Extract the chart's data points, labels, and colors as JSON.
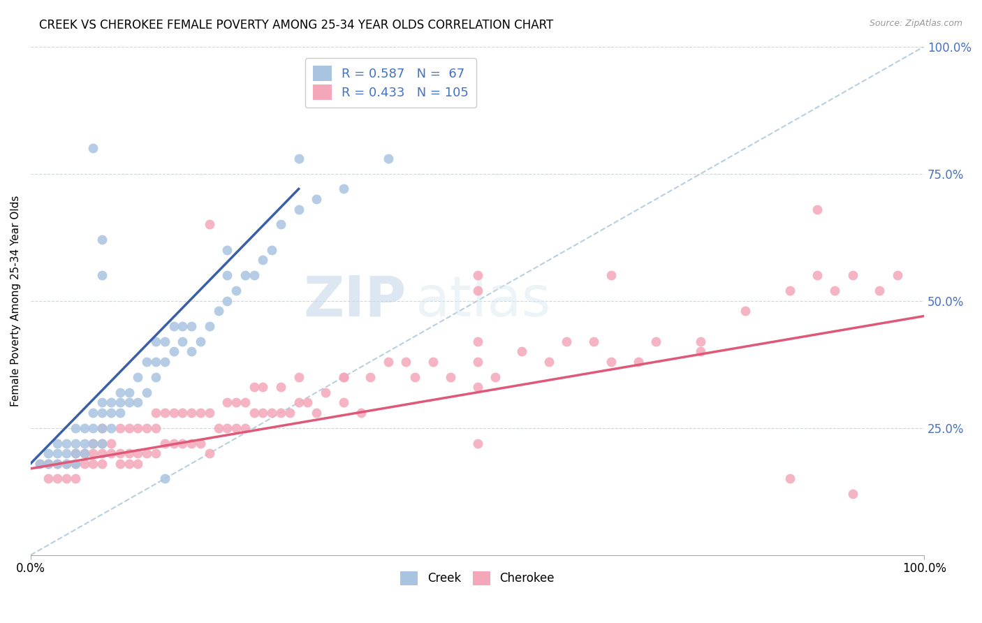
{
  "title": "CREEK VS CHEROKEE FEMALE POVERTY AMONG 25-34 YEAR OLDS CORRELATION CHART",
  "source": "Source: ZipAtlas.com",
  "ylabel": "Female Poverty Among 25-34 Year Olds",
  "creek_R": 0.587,
  "creek_N": 67,
  "cherokee_R": 0.433,
  "cherokee_N": 105,
  "creek_color": "#a8c4e0",
  "cherokee_color": "#f4a7b9",
  "creek_line_color": "#3a5fa8",
  "cherokee_line_color": "#e05878",
  "diagonal_color": "#b8cfe0",
  "watermark_zip": "ZIP",
  "watermark_atlas": "atlas",
  "background_color": "#ffffff",
  "grid_color": "#c8d8e8",
  "right_axis_color": "#4472c4",
  "creek_line": {
    "x0": 0.0,
    "y0": 0.18,
    "x1": 0.3,
    "y1": 0.72
  },
  "cherokee_line": {
    "x0": 0.0,
    "y0": 0.17,
    "x1": 1.0,
    "y1": 0.47
  },
  "creek_x": [
    0.01,
    0.02,
    0.02,
    0.03,
    0.03,
    0.03,
    0.04,
    0.04,
    0.04,
    0.05,
    0.05,
    0.05,
    0.05,
    0.06,
    0.06,
    0.06,
    0.07,
    0.07,
    0.07,
    0.08,
    0.08,
    0.08,
    0.08,
    0.09,
    0.09,
    0.09,
    0.1,
    0.1,
    0.1,
    0.11,
    0.11,
    0.12,
    0.12,
    0.13,
    0.13,
    0.14,
    0.14,
    0.14,
    0.15,
    0.15,
    0.16,
    0.16,
    0.17,
    0.17,
    0.18,
    0.18,
    0.19,
    0.2,
    0.21,
    0.22,
    0.22,
    0.23,
    0.24,
    0.25,
    0.26,
    0.27,
    0.28,
    0.3,
    0.32,
    0.35,
    0.4,
    0.07,
    0.3,
    0.22,
    0.08,
    0.08,
    0.15
  ],
  "creek_y": [
    0.18,
    0.18,
    0.2,
    0.18,
    0.2,
    0.22,
    0.18,
    0.2,
    0.22,
    0.18,
    0.2,
    0.22,
    0.25,
    0.2,
    0.22,
    0.25,
    0.22,
    0.25,
    0.28,
    0.22,
    0.25,
    0.28,
    0.3,
    0.25,
    0.28,
    0.3,
    0.28,
    0.3,
    0.32,
    0.3,
    0.32,
    0.3,
    0.35,
    0.32,
    0.38,
    0.35,
    0.38,
    0.42,
    0.38,
    0.42,
    0.4,
    0.45,
    0.42,
    0.45,
    0.4,
    0.45,
    0.42,
    0.45,
    0.48,
    0.5,
    0.55,
    0.52,
    0.55,
    0.55,
    0.58,
    0.6,
    0.65,
    0.68,
    0.7,
    0.72,
    0.78,
    0.8,
    0.78,
    0.6,
    0.55,
    0.62,
    0.15
  ],
  "cherokee_x": [
    0.01,
    0.02,
    0.02,
    0.03,
    0.03,
    0.04,
    0.04,
    0.05,
    0.05,
    0.05,
    0.06,
    0.06,
    0.07,
    0.07,
    0.07,
    0.08,
    0.08,
    0.08,
    0.08,
    0.09,
    0.09,
    0.1,
    0.1,
    0.1,
    0.11,
    0.11,
    0.11,
    0.12,
    0.12,
    0.12,
    0.13,
    0.13,
    0.14,
    0.14,
    0.14,
    0.15,
    0.15,
    0.16,
    0.16,
    0.17,
    0.17,
    0.18,
    0.18,
    0.19,
    0.19,
    0.2,
    0.2,
    0.21,
    0.22,
    0.22,
    0.23,
    0.23,
    0.24,
    0.24,
    0.25,
    0.25,
    0.26,
    0.26,
    0.27,
    0.28,
    0.28,
    0.29,
    0.3,
    0.3,
    0.31,
    0.32,
    0.33,
    0.35,
    0.35,
    0.37,
    0.38,
    0.4,
    0.42,
    0.43,
    0.45,
    0.47,
    0.5,
    0.5,
    0.52,
    0.55,
    0.58,
    0.6,
    0.63,
    0.65,
    0.68,
    0.7,
    0.75,
    0.8,
    0.85,
    0.88,
    0.9,
    0.92,
    0.95,
    0.97,
    0.5,
    0.35,
    0.2,
    0.88,
    0.5,
    0.65,
    0.75,
    0.5,
    0.92,
    0.5,
    0.85
  ],
  "cherokee_y": [
    0.18,
    0.15,
    0.18,
    0.15,
    0.18,
    0.15,
    0.18,
    0.15,
    0.18,
    0.2,
    0.18,
    0.2,
    0.18,
    0.2,
    0.22,
    0.18,
    0.2,
    0.22,
    0.25,
    0.2,
    0.22,
    0.18,
    0.2,
    0.25,
    0.18,
    0.2,
    0.25,
    0.18,
    0.2,
    0.25,
    0.2,
    0.25,
    0.2,
    0.25,
    0.28,
    0.22,
    0.28,
    0.22,
    0.28,
    0.22,
    0.28,
    0.22,
    0.28,
    0.22,
    0.28,
    0.2,
    0.28,
    0.25,
    0.25,
    0.3,
    0.25,
    0.3,
    0.25,
    0.3,
    0.28,
    0.33,
    0.28,
    0.33,
    0.28,
    0.28,
    0.33,
    0.28,
    0.3,
    0.35,
    0.3,
    0.28,
    0.32,
    0.3,
    0.35,
    0.28,
    0.35,
    0.38,
    0.38,
    0.35,
    0.38,
    0.35,
    0.33,
    0.38,
    0.35,
    0.4,
    0.38,
    0.42,
    0.42,
    0.38,
    0.38,
    0.42,
    0.42,
    0.48,
    0.52,
    0.55,
    0.52,
    0.55,
    0.52,
    0.55,
    0.55,
    0.35,
    0.65,
    0.68,
    0.42,
    0.55,
    0.4,
    0.22,
    0.12,
    0.52,
    0.15
  ],
  "xlim": [
    0,
    1.0
  ],
  "ylim": [
    0,
    1.0
  ],
  "ytick_labels_right": [
    "25.0%",
    "50.0%",
    "75.0%",
    "100.0%"
  ],
  "ytick_values_right": [
    0.25,
    0.5,
    0.75,
    1.0
  ]
}
